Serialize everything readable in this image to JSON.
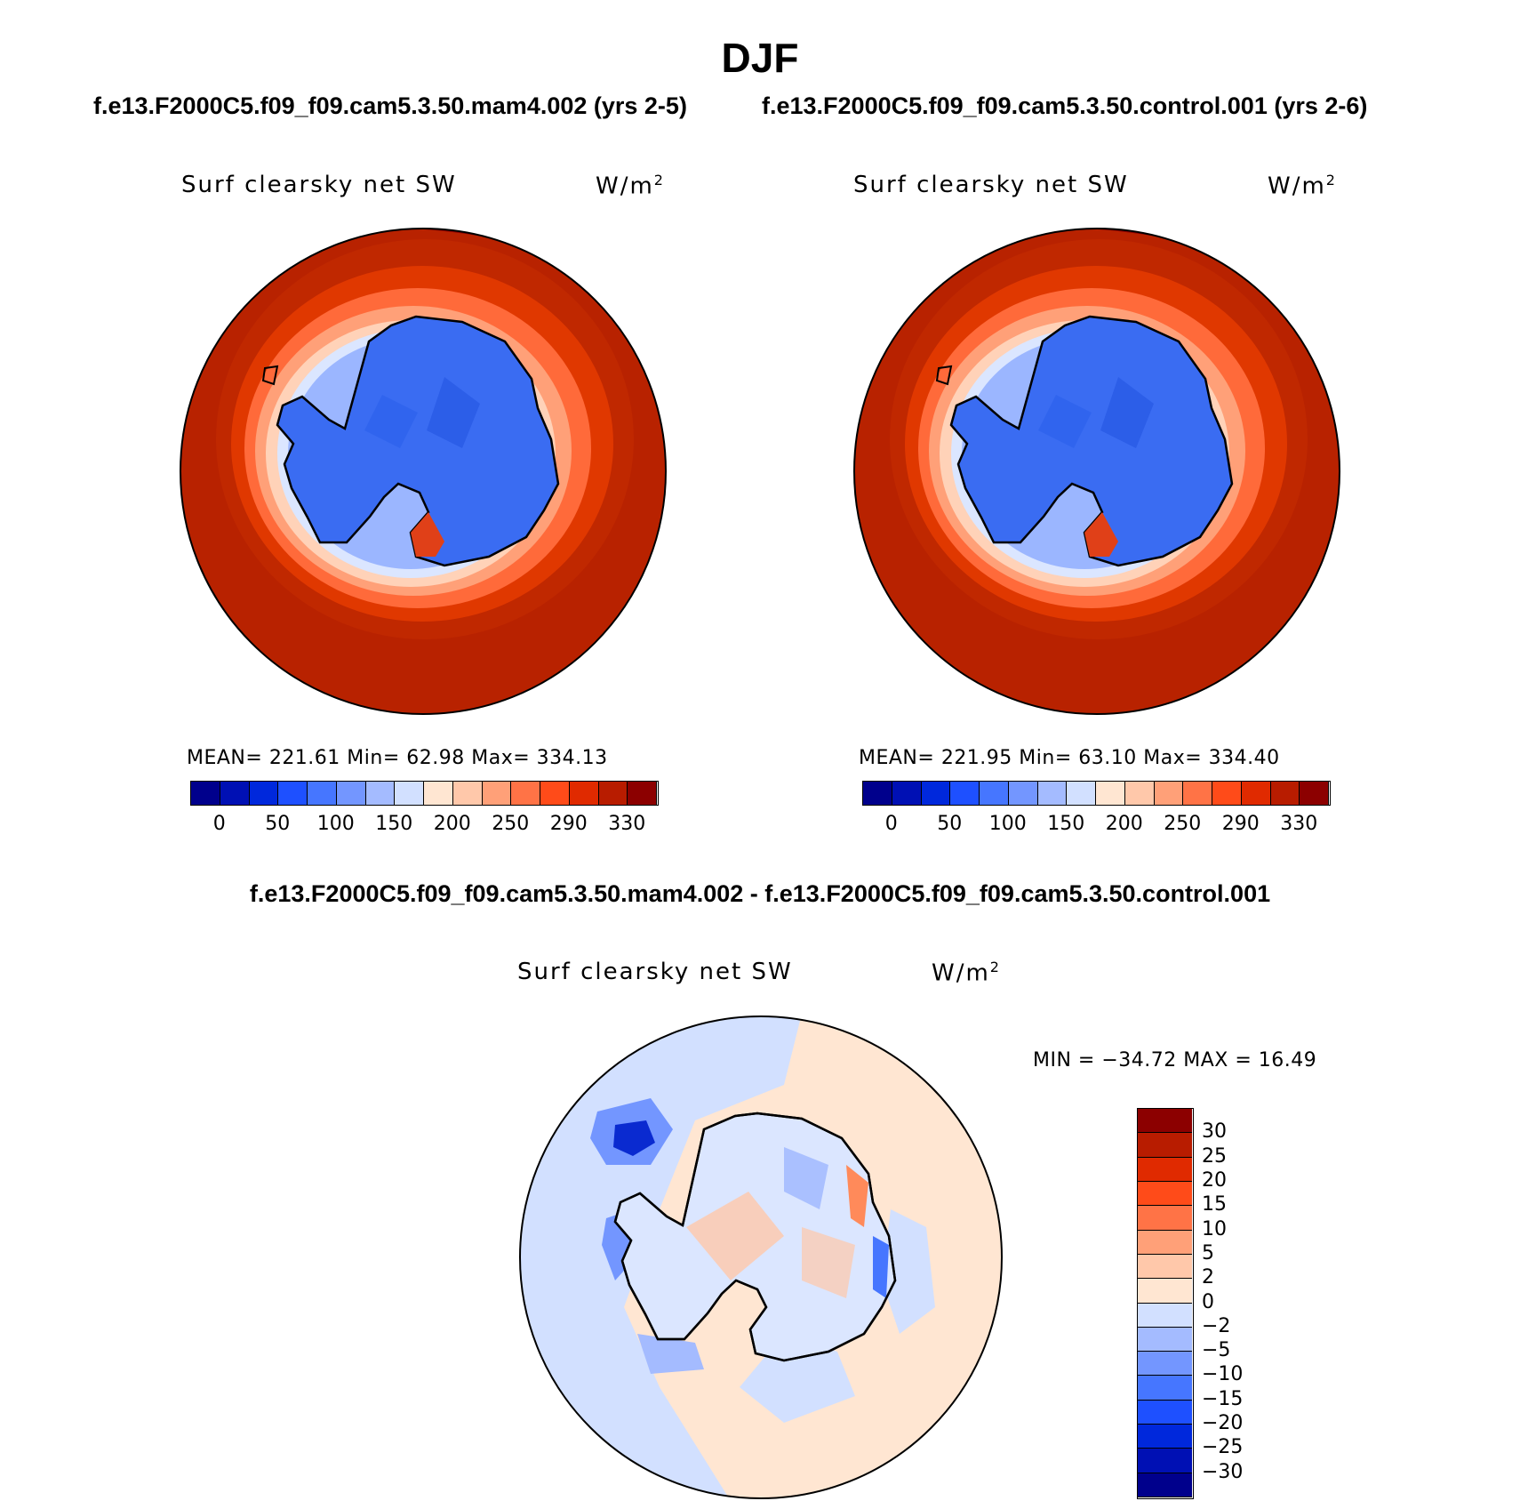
{
  "title": "DJF",
  "panels": [
    {
      "case_title": "f.e13.F2000C5.f09_f09.cam5.3.50.mam4.002 (yrs 2-5)",
      "var_label": "Surf clearsky net SW",
      "units": "W/m",
      "units_sup": "2",
      "stats": "MEAN= 221.61   Min=   62.98   Max= 334.13"
    },
    {
      "case_title": "f.e13.F2000C5.f09_f09.cam5.3.50.control.001 (yrs 2-6)",
      "var_label": "Surf clearsky net SW",
      "units": "W/m",
      "units_sup": "2",
      "stats": "MEAN= 221.95   Min=   63.10   Max= 334.40"
    }
  ],
  "colorbar_main": {
    "colors": [
      "#00008c",
      "#0010b4",
      "#0028dc",
      "#1e50ff",
      "#4676ff",
      "#7396ff",
      "#a4bbff",
      "#d2e0ff",
      "#ffe6d2",
      "#ffc8aa",
      "#ffa078",
      "#ff7346",
      "#ff4b19",
      "#e02a00",
      "#b81c00",
      "#8c0000"
    ],
    "labels": [
      "0",
      "50",
      "100",
      "150",
      "200",
      "250",
      "290",
      "330"
    ]
  },
  "difference": {
    "title": "f.e13.F2000C5.f09_f09.cam5.3.50.mam4.002 - f.e13.F2000C5.f09_f09.cam5.3.50.control.001",
    "var_label": "Surf clearsky net SW",
    "units": "W/m",
    "units_sup": "2",
    "minmax": "MIN = −34.72 MAX =   16.49",
    "colorbar": {
      "colors": [
        "#8c0000",
        "#b81c00",
        "#e02a00",
        "#ff4b19",
        "#ff7346",
        "#ffa078",
        "#ffc8aa",
        "#ffe6d2",
        "#d2e0ff",
        "#a4bbff",
        "#7396ff",
        "#4676ff",
        "#1e50ff",
        "#0028dc",
        "#0010b4",
        "#00008c"
      ],
      "labels": [
        "30",
        "25",
        "20",
        "15",
        "10",
        "5",
        "2",
        "0",
        "−2",
        "−5",
        "−10",
        "−15",
        "−20",
        "−25",
        "−30"
      ]
    }
  }
}
